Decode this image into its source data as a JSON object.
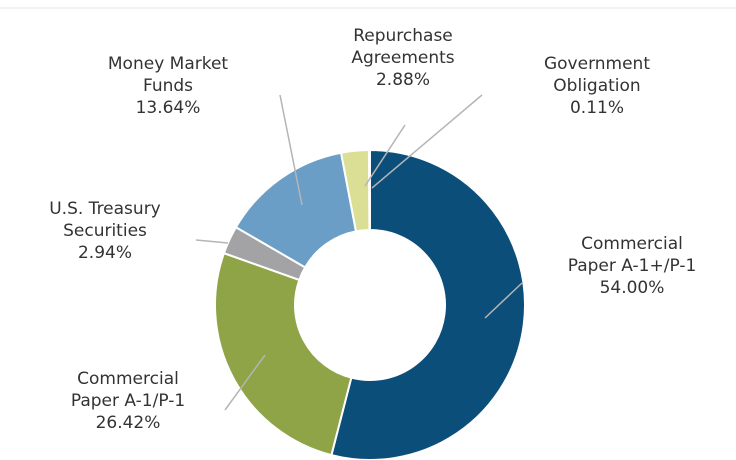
{
  "chart_data": {
    "type": "donut",
    "categories": [
      "Commercial Paper A-1+/P-1",
      "Commercial Paper A-1/P-1",
      "U.S. Treasury Securities",
      "Money Market Funds",
      "Repurchase Agreements",
      "Government Obligation"
    ],
    "values": [
      54.0,
      26.42,
      2.94,
      13.64,
      2.88,
      0.11
    ],
    "value_labels": [
      "54.00%",
      "26.42%",
      "2.94%",
      "13.64%",
      "2.88%",
      "0.11%"
    ],
    "colors": [
      "#0c4e7a",
      "#8fa347",
      "#a3a3a5",
      "#6b9ec6",
      "#dadf95",
      "#2f6890"
    ]
  }
}
